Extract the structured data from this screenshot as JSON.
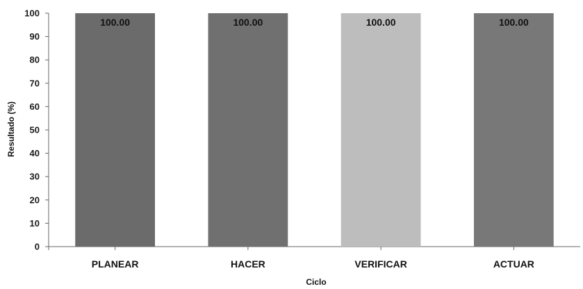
{
  "chart_data": {
    "type": "bar",
    "title": "",
    "xlabel": "Ciclo",
    "ylabel": "Resultado (%)",
    "ylim": [
      0,
      100
    ],
    "yticks": [
      0,
      10,
      20,
      30,
      40,
      50,
      60,
      70,
      80,
      90,
      100
    ],
    "grid": false,
    "legend": "none",
    "categories": [
      "PLANEAR",
      "HACER",
      "VERIFICAR",
      "ACTUAR"
    ],
    "values": [
      100,
      100,
      100,
      100
    ],
    "data_labels": [
      "100.00",
      "100.00",
      "100.00",
      "100.00"
    ],
    "colors": [
      "#6b6b6b",
      "#707070",
      "#bdbdbd",
      "#787878"
    ]
  }
}
